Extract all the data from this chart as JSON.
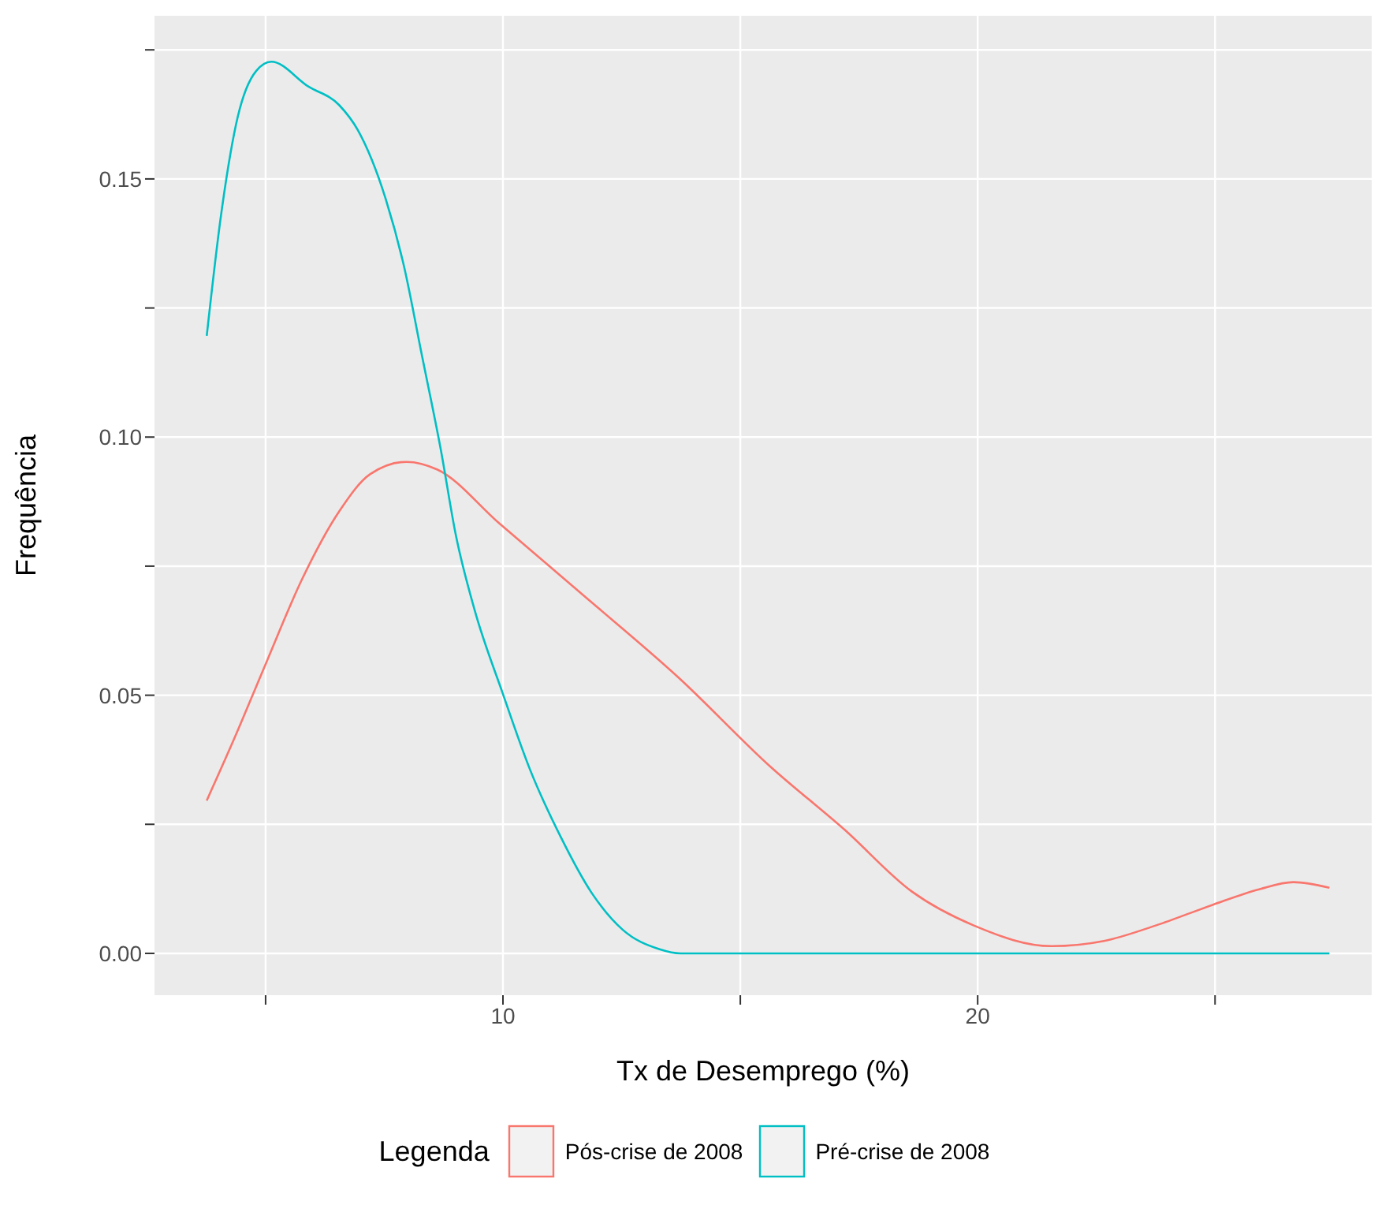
{
  "chart_data": {
    "type": "line",
    "xlabel": "Tx de Desemprego (%)",
    "ylabel": "Frequência",
    "legend_title": "Legenda",
    "legend": "bottom",
    "grid": true,
    "marker": "none",
    "line_style": "solid",
    "xlim": [
      2.66,
      28.3
    ],
    "xticks": [
      {
        "value": 5,
        "label": null
      },
      10,
      {
        "value": 15,
        "label": null
      },
      20,
      {
        "value": 25,
        "label": null
      }
    ],
    "ylim": [
      -0.0081,
      0.1816
    ],
    "yticks": [
      {
        "value": 0,
        "label": "0.00"
      },
      0.05,
      {
        "value": 0.1,
        "label": "0.10"
      },
      0.15,
      {
        "value": 0.025,
        "label": null
      },
      {
        "value": 0.075,
        "label": null
      },
      {
        "value": 0.125,
        "label": null
      },
      {
        "value": 0.175,
        "label": null
      }
    ],
    "series": [
      {
        "name": "Pós-crise de 2008",
        "color": "#f8766d",
        "x": [
          3.76,
          4.34,
          4.99,
          5.77,
          6.55,
          7.2,
          7.97,
          8.62,
          9.92,
          11.74,
          13.69,
          15.63,
          17.19,
          18.61,
          19.92,
          21.56,
          22.66,
          23.75,
          24.95,
          25.93,
          26.65,
          27.41
        ],
        "values": [
          0.0296,
          0.0416,
          0.0558,
          0.0725,
          0.0856,
          0.0928,
          0.0952,
          0.0937,
          0.0833,
          0.069,
          0.0535,
          0.0362,
          0.024,
          0.012,
          0.0054,
          0.0014,
          0.0024,
          0.0054,
          0.0094,
          0.0124,
          0.0138,
          0.0127
        ]
      },
      {
        "name": "Pré-crise de 2008",
        "color": "#00bfc4",
        "x": [
          3.76,
          4.06,
          4.41,
          4.8,
          5.12,
          5.9,
          6.55,
          6.94,
          7.52,
          7.91,
          8.3,
          8.69,
          9.01,
          9.4,
          9.99,
          10.57,
          11.22,
          11.87,
          12.52,
          13.3,
          13.74,
          27.41
        ],
        "values": [
          0.1196,
          0.1429,
          0.1619,
          0.1709,
          0.1727,
          0.1679,
          0.1643,
          0.1595,
          0.1464,
          0.1333,
          0.1155,
          0.0976,
          0.0809,
          0.0666,
          0.0505,
          0.0356,
          0.0225,
          0.0117,
          0.0046,
          0.0008,
          0,
          0
        ]
      }
    ]
  }
}
